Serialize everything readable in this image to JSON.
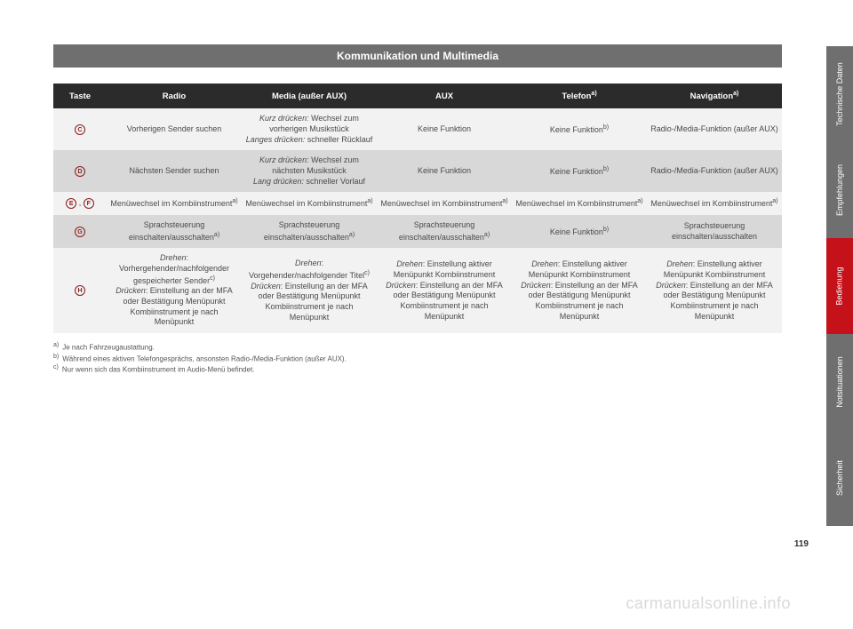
{
  "title": "Kommunikation und Multimedia",
  "columns": [
    "Taste",
    "Radio",
    "Media (außer AUX)",
    "AUX",
    "Telefon",
    "Navigation"
  ],
  "col_sup": [
    "",
    "",
    "",
    "",
    "a)",
    "a)"
  ],
  "rows": [
    {
      "keys": [
        "C"
      ],
      "cells": [
        "Vorherigen Sender suchen",
        "<span class=\"italic\">Kurz drücken:</span> Wechsel zum vorherigen Musikstück<br><span class=\"italic\">Langes drücken:</span> schneller Rücklauf",
        "Keine Funktion",
        "Keine Funktion<sup>b)</sup>",
        "Radio-/Media-Funktion (außer AUX)"
      ],
      "shade": "light"
    },
    {
      "keys": [
        "D"
      ],
      "cells": [
        "Nächsten Sender suchen",
        "<span class=\"italic\">Kurz drücken:</span> Wechsel zum nächsten Musikstück<br><span class=\"italic\">Lang drücken:</span> schneller Vorlauf",
        "Keine Funktion",
        "Keine Funktion<sup>b)</sup>",
        "Radio-/Media-Funktion (außer AUX)"
      ],
      "shade": "dark"
    },
    {
      "keys": [
        "E",
        "F"
      ],
      "cells": [
        "Menüwechsel im Kombiinstrument<sup>a)</sup>",
        "Menüwechsel im Kombiinstrument<sup>a)</sup>",
        "Menüwechsel im Kombiinstrument<sup>a)</sup>",
        "Menüwechsel im Kombiinstrument<sup>a)</sup>",
        "Menüwechsel im Kombiinstrument<sup>a)</sup>"
      ],
      "shade": "light"
    },
    {
      "keys": [
        "G"
      ],
      "cells": [
        "Sprachsteuerung einschalten/ausschalten<sup>a)</sup>",
        "Sprachsteuerung einschalten/ausschalten<sup>a)</sup>",
        "Sprachsteuerung einschalten/ausschalten<sup>a)</sup>",
        "Keine Funktion<sup>b)</sup>",
        "Sprachsteuerung einschalten/ausschalten"
      ],
      "shade": "dark"
    },
    {
      "keys": [
        "H"
      ],
      "cells": [
        "<span class=\"italic\">Drehen</span>: Vorhergehender/nachfolgender gespeicherter Sender<sup>c)</sup><br><span class=\"italic\">Drücken</span>: Einstellung an der MFA oder Bestätigung Menüpunkt Kombiinstrument je nach Menüpunkt",
        "<span class=\"italic\">Drehen</span>: Vorgehender/nachfolgender Titel<sup>c)</sup><br><span class=\"italic\">Drücken</span>: Einstellung an der MFA oder Bestätigung Menüpunkt Kombiinstrument je nach Menüpunkt",
        "<span class=\"italic\">Drehen</span>: Einstellung aktiver Menüpunkt Kombiinstrument<br><span class=\"italic\">Drücken</span>: Einstellung an der MFA oder Bestätigung Menüpunkt Kombiinstrument je nach Menüpunkt",
        "<span class=\"italic\">Drehen</span>: Einstellung aktiver Menüpunkt Kombiinstrument<br><span class=\"italic\">Drücken</span>: Einstellung an der MFA oder Bestätigung Menüpunkt Kombiinstrument je nach Menüpunkt",
        "<span class=\"italic\">Drehen</span>: Einstellung aktiver Menüpunkt Kombiinstrument<br><span class=\"italic\">Drücken</span>: Einstellung an der MFA oder Bestätigung Menüpunkt Kombiinstrument je nach Menüpunkt"
      ],
      "shade": "light"
    }
  ],
  "footnotes": [
    {
      "mark": "a)",
      "text": "Je nach Fahrzeugaustattung."
    },
    {
      "mark": "b)",
      "text": "Während eines aktiven Telefongesprächs, ansonsten Radio-/Media-Funktion (außer AUX)."
    },
    {
      "mark": "c)",
      "text": "Nur wenn sich das Kombiinstrument im Audio-Menü befindet."
    }
  ],
  "tabs": [
    {
      "label": "Technische Daten",
      "color": "#6f6f6f"
    },
    {
      "label": "Empfehlungen",
      "color": "#6f6f6f"
    },
    {
      "label": "Bedienung",
      "color": "#c4111a"
    },
    {
      "label": "Notsituationen",
      "color": "#6f6f6f"
    },
    {
      "label": "Sicherheit",
      "color": "#6f6f6f"
    }
  ],
  "page_number": "119",
  "watermark": "carmanualsonline.info",
  "colors": {
    "header_bg": "#2b2b2b",
    "title_bg": "#6f6f6f",
    "row_light": "#f2f2f2",
    "row_dark": "#d8d8d8",
    "accent": "#c4111a",
    "key_border": "#8a1a1a"
  }
}
